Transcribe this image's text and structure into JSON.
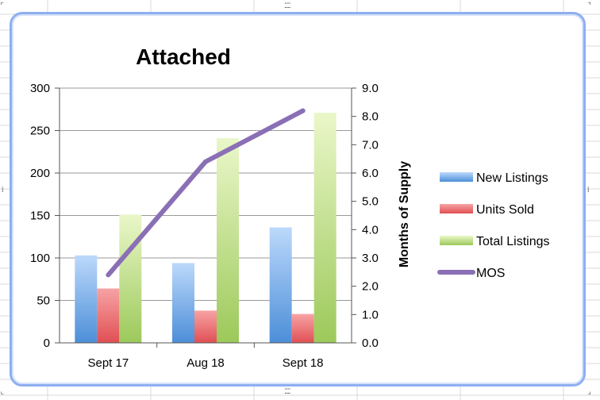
{
  "chart_data": {
    "type": "bar",
    "title": "Attached",
    "categories": [
      "Sept 17",
      "Aug 18",
      "Sept 18"
    ],
    "series": [
      {
        "name": "New Listings",
        "type": "bar",
        "axis": "left",
        "values": [
          103,
          94,
          136
        ],
        "color": "#5b9bd5"
      },
      {
        "name": "Units Sold",
        "type": "bar",
        "axis": "left",
        "values": [
          64,
          38,
          34
        ],
        "color": "#e8595c"
      },
      {
        "name": "Total Listings",
        "type": "bar",
        "axis": "left",
        "values": [
          151,
          241,
          271
        ],
        "color": "#a8cf5a"
      },
      {
        "name": "MOS",
        "type": "line",
        "axis": "right",
        "values": [
          2.4,
          6.4,
          8.2
        ],
        "color": "#8a6fb5"
      }
    ],
    "y_left": {
      "label": "",
      "min": 0,
      "max": 300,
      "ticks": [
        "0",
        "50",
        "100",
        "150",
        "200",
        "250",
        "300"
      ]
    },
    "y_right": {
      "label": "Months of Supply",
      "min": 0,
      "max": 9,
      "ticks": [
        "0.0",
        "1.0",
        "2.0",
        "3.0",
        "4.0",
        "5.0",
        "6.0",
        "7.0",
        "8.0",
        "9.0"
      ]
    },
    "grid": true,
    "legend_position": "right"
  }
}
